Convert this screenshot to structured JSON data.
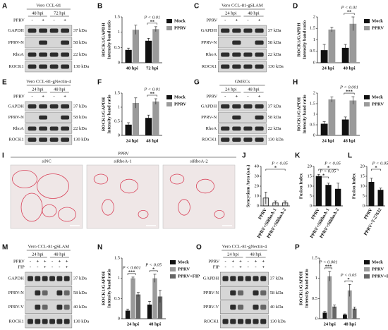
{
  "chart_data": [
    {
      "panel": "B",
      "type": "bar",
      "ylabel": [
        "ROCK1/GAPDH",
        "Intensity band ratio"
      ],
      "categories": [
        "48 hpi",
        "72 hpi"
      ],
      "series": [
        {
          "name": "Mock",
          "color": "#111111",
          "values": [
            0.42,
            0.72
          ],
          "errors": [
            0.06,
            0.08
          ]
        },
        {
          "name": "PPRV",
          "color": "#9a9a9a",
          "values": [
            1.08,
            1.1
          ],
          "errors": [
            0.15,
            0.08
          ]
        }
      ],
      "ylim": [
        0,
        1.5
      ],
      "yticks": [
        0,
        0.5,
        1,
        1.5
      ],
      "annotations": [
        {
          "p": "P < 0.01",
          "sig": "**"
        }
      ]
    },
    {
      "panel": "D",
      "type": "bar",
      "ylabel": [
        "ROCK1/GAPDH",
        "Intensity band ratio"
      ],
      "categories": [
        "24 hpi",
        "48 hpi"
      ],
      "series": [
        {
          "name": "Mock",
          "color": "#111111",
          "values": [
            0.55,
            0.65
          ],
          "errors": [
            0.25,
            0.15
          ]
        },
        {
          "name": "PPRV",
          "color": "#9a9a9a",
          "values": [
            1.45,
            1.7
          ],
          "errors": [
            0.1,
            0.3
          ]
        }
      ],
      "ylim": [
        0,
        2
      ],
      "yticks": [
        0,
        0.5,
        1,
        1.5,
        2
      ],
      "annotations": [
        {
          "p": "P < 0.01",
          "sig": "**"
        }
      ]
    },
    {
      "panel": "F",
      "type": "bar",
      "ylabel": [
        "ROCK1/GAPDH",
        "Intensity band ratio"
      ],
      "categories": [
        "24 hpi",
        "48 hpi"
      ],
      "series": [
        {
          "name": "Mock",
          "color": "#111111",
          "values": [
            0.38,
            0.62
          ],
          "errors": [
            0.07,
            0.1
          ]
        },
        {
          "name": "PPRV",
          "color": "#9a9a9a",
          "values": [
            1.15,
            1.2
          ],
          "errors": [
            0.18,
            0.1
          ]
        }
      ],
      "ylim": [
        0,
        1.5
      ],
      "yticks": [
        0,
        0.5,
        1,
        1.5
      ],
      "annotations": [
        {
          "p": "P < 0.01",
          "sig": "**"
        }
      ]
    },
    {
      "panel": "H",
      "type": "bar",
      "ylabel": [
        "ROCK1/GAPDH",
        "Intensity band ratio"
      ],
      "categories": [
        "24 hpi",
        "48 hpi"
      ],
      "series": [
        {
          "name": "Mock",
          "color": "#111111",
          "values": [
            0.55,
            0.75
          ],
          "errors": [
            0.1,
            0.12
          ]
        },
        {
          "name": "PPRV",
          "color": "#9a9a9a",
          "values": [
            1.7,
            1.65
          ],
          "errors": [
            0.12,
            0.18
          ]
        }
      ],
      "ylim": [
        0,
        2
      ],
      "yticks": [
        0,
        0.5,
        1,
        1.5,
        2
      ],
      "annotations": [
        {
          "p": "P < 0.001",
          "sig": "***"
        }
      ]
    },
    {
      "panel": "J",
      "type": "bar",
      "ylabel": [
        "Syncytium Area (a.u.)"
      ],
      "categories": [
        "PPRV",
        "PPRV+SiRhoA-1",
        "PPRV+SiRhoA-2"
      ],
      "values": [
        8,
        3,
        3
      ],
      "errors": [
        6,
        2,
        2
      ],
      "color": "#222222",
      "ylim": [
        0,
        40
      ],
      "yticks": [
        0,
        10,
        20,
        30,
        40
      ],
      "annotations": [
        {
          "p": "P < 0.05",
          "sig": "*"
        }
      ]
    },
    {
      "panel": "K",
      "type": "bar",
      "ylabel": [
        "Fusion Index"
      ],
      "categories": [
        "PPRV",
        "PPRV+SiRhoA-1",
        "PPRV+SiRhoA-2"
      ],
      "values": [
        15,
        10.5,
        8.5
      ],
      "errors": [
        1,
        1,
        3
      ],
      "color": "#111111",
      "ylim": [
        0,
        20
      ],
      "yticks": [
        0,
        5,
        10,
        15,
        20
      ],
      "annotations": [
        {
          "p": "P < 0.05",
          "sig": "*"
        },
        {
          "p": "P < 0.05",
          "sig": "*"
        }
      ]
    },
    {
      "panel": "L",
      "type": "bar",
      "ylabel": [
        "Fusion Index"
      ],
      "categories": [
        "PPRV",
        "PPRV+Y-27632"
      ],
      "values": [
        12,
        8
      ],
      "errors": [
        2,
        1
      ],
      "color": "#111111",
      "ylim": [
        0,
        20
      ],
      "yticks": [
        0,
        5,
        10,
        15,
        20
      ],
      "annotations": [
        {
          "p": "P < 0.05",
          "sig": "*"
        }
      ]
    },
    {
      "panel": "N",
      "type": "bar",
      "ylabel": [
        "ROCK1/GAPDH",
        "Intensity band ratio"
      ],
      "categories": [
        "24 hpi",
        "48 hpi"
      ],
      "series": [
        {
          "name": "Mock",
          "color": "#111111",
          "values": [
            0.2,
            0.35
          ],
          "errors": [
            0.04,
            0.08
          ]
        },
        {
          "name": "PPRV",
          "color": "#9a9a9a",
          "values": [
            1.0,
            1.0
          ],
          "errors": [
            0.03,
            0.1
          ]
        },
        {
          "name": "PPRV+FIP",
          "color": "#666666",
          "values": [
            0.6,
            0.55
          ],
          "errors": [
            0.05,
            0.15
          ]
        }
      ],
      "ylim": [
        0,
        1.5
      ],
      "yticks": [
        0,
        0.5,
        1,
        1.5
      ],
      "annotations": [
        {
          "p": "P < 0.001",
          "sig": "***"
        },
        {
          "p": "P < 0.05",
          "sig": "*"
        }
      ]
    },
    {
      "panel": "P",
      "type": "bar",
      "ylabel": [
        "ROCK1/GAPDH",
        "Intensity band ratio"
      ],
      "categories": [
        "24 hpi",
        "48 hpi"
      ],
      "series": [
        {
          "name": "Mock",
          "color": "#111111",
          "values": [
            0.15,
            0.1
          ],
          "errors": [
            0.03,
            0.02
          ]
        },
        {
          "name": "PPRV",
          "color": "#9a9a9a",
          "values": [
            1.05,
            0.7
          ],
          "errors": [
            0.12,
            0.15
          ]
        },
        {
          "name": "PPRV+FIP",
          "color": "#666666",
          "values": [
            0.3,
            0.25
          ],
          "errors": [
            0.04,
            0.04
          ]
        }
      ],
      "ylim": [
        0,
        1.5
      ],
      "yticks": [
        0,
        0.5,
        1,
        1.5
      ],
      "annotations": [
        {
          "p": "P < 0.001",
          "sig": "***"
        },
        {
          "p": "P < 0.05",
          "sig": "*"
        }
      ]
    }
  ],
  "blots": [
    {
      "panel": "A",
      "title": "Vero CCL-81",
      "times": [
        "48 hpi",
        "72 hpi"
      ],
      "conditions": [
        {
          "label": "PPRV",
          "signs": [
            "-",
            "+",
            "-",
            "+"
          ]
        }
      ],
      "bands": [
        "GAPDH",
        "PPRV-N",
        "RhoA",
        "ROCK1"
      ],
      "kda": [
        "37 kDa",
        "58 kDa",
        "22 kDa",
        "130 kDa"
      ]
    },
    {
      "panel": "C",
      "title": "Vero CCL-81-gSLAM",
      "times": [
        "24 hpi",
        "48 hpi"
      ],
      "conditions": [
        {
          "label": "PPRV",
          "signs": [
            "-",
            "+",
            "-",
            "+"
          ]
        }
      ],
      "bands": [
        "GAPDH",
        "PPRV-N",
        "RhoA",
        "ROCK1"
      ],
      "kda": [
        "37 kDa",
        "58 kDa",
        "22 kDa",
        "130 kDa"
      ]
    },
    {
      "panel": "E",
      "title": "Vero CCL-81-gNectin-4",
      "times": [
        "24 hpi",
        "48 hpi"
      ],
      "conditions": [
        {
          "label": "PPRV",
          "signs": [
            "-",
            "+",
            "-",
            "+"
          ]
        }
      ],
      "bands": [
        "GAPDH",
        "PPRV-N",
        "RhoA",
        "ROCK1"
      ],
      "kda": [
        "37 kDa",
        "58 kDa",
        "22 kDa",
        "130 kDa"
      ]
    },
    {
      "panel": "G",
      "title": "GMECs",
      "times": [
        "24 hpi",
        "48 hpi"
      ],
      "conditions": [
        {
          "label": "PPRV",
          "signs": [
            "-",
            "+",
            "-",
            "+"
          ]
        }
      ],
      "bands": [
        "GAPDH",
        "PPRV-N",
        "RhoA",
        "ROCK1"
      ],
      "kda": [
        "37 kDa",
        "58 kDa",
        "22 kDa",
        "130 kDa"
      ]
    },
    {
      "panel": "M",
      "title": "Vero CCL-81-gSLAM",
      "times": [
        "24 hpi",
        "48 hpi"
      ],
      "conditions": [
        {
          "label": "PPRV",
          "signs": [
            "-",
            "+",
            "+",
            "-",
            "+",
            "+"
          ]
        },
        {
          "label": "FIP",
          "signs": [
            "-",
            "-",
            "+",
            "-",
            "-",
            "+"
          ]
        }
      ],
      "bands": [
        "GAPDH",
        "PPRV-N",
        "PPRV-V",
        "ROCK1"
      ],
      "kda": [
        "37 kDa",
        "58 kDa",
        "40 kDa",
        "130 kDa"
      ]
    },
    {
      "panel": "O",
      "title": "Vero CCL-81-gNectin-4",
      "times": [
        "24 hpi",
        "48 hpi"
      ],
      "conditions": [
        {
          "label": "PPRV",
          "signs": [
            "-",
            "+",
            "+",
            "-",
            "+",
            "+"
          ]
        },
        {
          "label": "FIP",
          "signs": [
            "-",
            "-",
            "+",
            "-",
            "-",
            "+"
          ]
        }
      ],
      "bands": [
        "GAPDH",
        "PPRV-N",
        "PPRV-V",
        "ROCK1"
      ],
      "kda": [
        "37 kDa",
        "58 kDa",
        "40 kDa",
        "130 kDa"
      ]
    }
  ],
  "micrographs": {
    "panel": "I",
    "title": "PPRV",
    "labels": [
      "siNC",
      "siRhoA-1",
      "siRhoA-2"
    ]
  }
}
